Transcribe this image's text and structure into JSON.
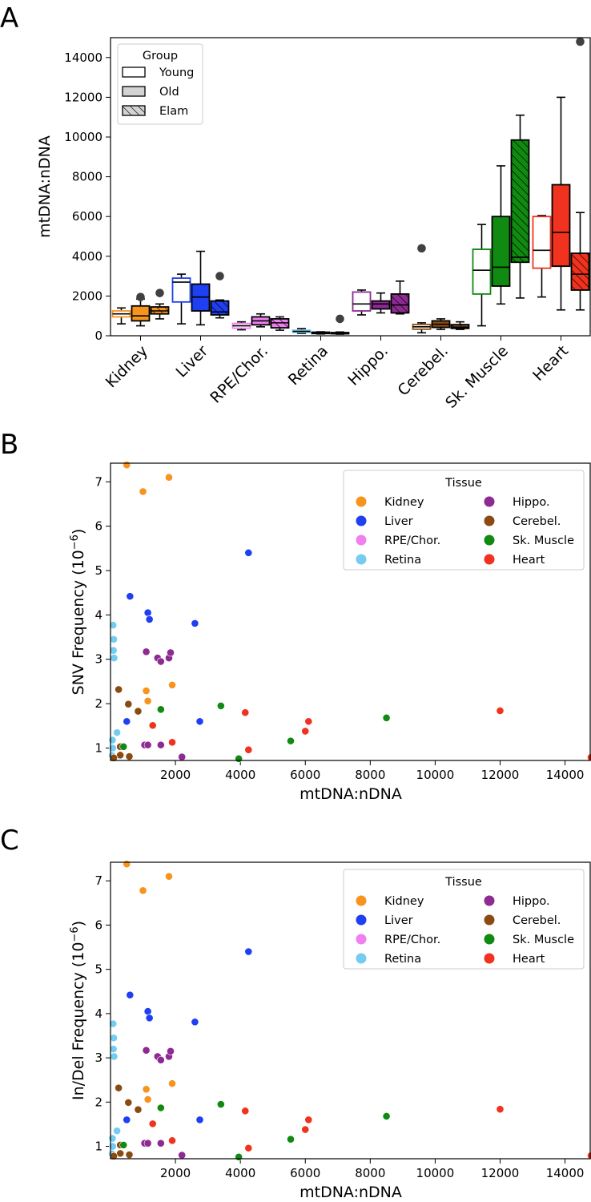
{
  "panels": {
    "a": {
      "letter": "A"
    },
    "b": {
      "letter": "B"
    },
    "c": {
      "letter": "C"
    }
  },
  "chart_data": [
    {
      "type": "box",
      "panel": "A",
      "ylabel": "mtDNA:nDNA",
      "ylim": [
        0,
        15000
      ],
      "yticks": [
        0,
        2000,
        4000,
        6000,
        8000,
        10000,
        12000,
        14000
      ],
      "categories": [
        "Kidney",
        "Liver",
        "RPE/Chor.",
        "Retina",
        "Hippo.",
        "Cerebel.",
        "Sk. Muscle",
        "Heart"
      ],
      "colors": [
        "#f7941d",
        "#1f3ff2",
        "#f07ff0",
        "#74cdf0",
        "#8e2a93",
        "#8a4b12",
        "#118a11",
        "#f0321e"
      ],
      "legend": {
        "title": "Group",
        "entries": [
          {
            "label": "Young",
            "style": "young"
          },
          {
            "label": "Old",
            "style": "old"
          },
          {
            "label": "Elam",
            "style": "elam"
          }
        ],
        "position": "top-left"
      },
      "series": [
        {
          "name": "Young",
          "boxes": [
            {
              "whislo": 600,
              "q1": 950,
              "med": 1100,
              "q3": 1250,
              "whishi": 1400,
              "fliers": []
            },
            {
              "whislo": 600,
              "q1": 1700,
              "med": 2700,
              "q3": 2900,
              "whishi": 3100,
              "fliers": []
            },
            {
              "whislo": 300,
              "q1": 380,
              "med": 500,
              "q3": 620,
              "whishi": 700,
              "fliers": []
            },
            {
              "whislo": 120,
              "q1": 170,
              "med": 220,
              "q3": 280,
              "whishi": 360,
              "fliers": []
            },
            {
              "whislo": 1050,
              "q1": 1250,
              "med": 1600,
              "q3": 2200,
              "whishi": 2300,
              "fliers": []
            },
            {
              "whislo": 150,
              "q1": 330,
              "med": 450,
              "q3": 570,
              "whishi": 650,
              "fliers": [
                4400
              ]
            },
            {
              "whislo": 500,
              "q1": 2100,
              "med": 3300,
              "q3": 4350,
              "whishi": 5600,
              "fliers": []
            },
            {
              "whislo": 1950,
              "q1": 3400,
              "med": 4300,
              "q3": 6000,
              "whishi": 6050,
              "fliers": []
            }
          ]
        },
        {
          "name": "Old",
          "boxes": [
            {
              "whislo": 500,
              "q1": 750,
              "med": 1000,
              "q3": 1500,
              "whishi": 1850,
              "fliers": [
                1950
              ]
            },
            {
              "whislo": 550,
              "q1": 1250,
              "med": 1950,
              "q3": 2600,
              "whishi": 4250,
              "fliers": []
            },
            {
              "whislo": 450,
              "q1": 550,
              "med": 750,
              "q3": 950,
              "whishi": 1100,
              "fliers": []
            },
            {
              "whislo": 90,
              "q1": 110,
              "med": 150,
              "q3": 180,
              "whishi": 200,
              "fliers": []
            },
            {
              "whislo": 1150,
              "q1": 1350,
              "med": 1600,
              "q3": 1750,
              "whishi": 2150,
              "fliers": []
            },
            {
              "whislo": 320,
              "q1": 420,
              "med": 580,
              "q3": 750,
              "whishi": 850,
              "fliers": []
            },
            {
              "whislo": 1600,
              "q1": 2500,
              "med": 3450,
              "q3": 6000,
              "whishi": 8550,
              "fliers": []
            },
            {
              "whislo": 1300,
              "q1": 3500,
              "med": 5200,
              "q3": 7600,
              "whishi": 12000,
              "fliers": []
            }
          ]
        },
        {
          "name": "Elam",
          "boxes": [
            {
              "whislo": 850,
              "q1": 1100,
              "med": 1250,
              "q3": 1450,
              "whishi": 1600,
              "fliers": [
                2150
              ]
            },
            {
              "whislo": 900,
              "q1": 1050,
              "med": 1200,
              "q3": 1750,
              "whishi": 1800,
              "fliers": [
                3000
              ]
            },
            {
              "whislo": 280,
              "q1": 400,
              "med": 650,
              "q3": 850,
              "whishi": 950,
              "fliers": []
            },
            {
              "whislo": 80,
              "q1": 100,
              "med": 130,
              "q3": 160,
              "whishi": 190,
              "fliers": [
                850
              ]
            },
            {
              "whislo": 1100,
              "q1": 1150,
              "med": 1550,
              "q3": 2100,
              "whishi": 2750,
              "fliers": []
            },
            {
              "whislo": 320,
              "q1": 370,
              "med": 430,
              "q3": 560,
              "whishi": 700,
              "fliers": []
            },
            {
              "whislo": 1900,
              "q1": 3700,
              "med": 3950,
              "q3": 9850,
              "whishi": 11100,
              "fliers": []
            },
            {
              "whislo": 1300,
              "q1": 2300,
              "med": 3100,
              "q3": 4150,
              "whishi": 6200,
              "fliers": [
                14800
              ]
            }
          ]
        }
      ]
    },
    {
      "type": "scatter",
      "panel": "B",
      "xlabel": "mtDNA:nDNA",
      "ylabel": "SNV Frequency (10",
      "ylabel_exp": "−6",
      "ylabel_close": ")",
      "xlim": [
        0,
        14800
      ],
      "ylim": [
        0.72,
        7.42
      ],
      "xticks": [
        2000,
        4000,
        6000,
        8000,
        10000,
        12000,
        14000
      ],
      "yticks": [
        1,
        2,
        3,
        4,
        5,
        6,
        7
      ],
      "legend": {
        "title": "Tissue",
        "position": "upper-right",
        "entries": [
          {
            "label": "Kidney",
            "color": "#f7941d"
          },
          {
            "label": "Hippo.",
            "color": "#8e2a93"
          },
          {
            "label": "Liver",
            "color": "#1f3ff2"
          },
          {
            "label": "Cerebel.",
            "color": "#8a4b12"
          },
          {
            "label": "RPE/Chor.",
            "color": "#f07ff0"
          },
          {
            "label": "Sk. Muscle",
            "color": "#118a11"
          },
          {
            "label": "Retina",
            "color": "#74cdf0"
          },
          {
            "label": "Heart",
            "color": "#f0321e"
          }
        ]
      },
      "series": [
        {
          "name": "Kidney",
          "color": "#f7941d",
          "points": [
            [
              500,
              7.38
            ],
            [
              1000,
              6.78
            ],
            [
              1800,
              7.1
            ],
            [
              1100,
              2.29
            ],
            [
              1900,
              2.42
            ],
            [
              1150,
              2.06
            ]
          ]
        },
        {
          "name": "Liver",
          "color": "#1f3ff2",
          "points": [
            [
              4250,
              5.4
            ],
            [
              600,
              4.42
            ],
            [
              1150,
              4.05
            ],
            [
              1200,
              3.9
            ],
            [
              2600,
              3.81
            ],
            [
              500,
              1.6
            ],
            [
              2750,
              1.6
            ]
          ]
        },
        {
          "name": "Retina",
          "color": "#74cdf0",
          "points": [
            [
              80,
              3.77
            ],
            [
              100,
              3.45
            ],
            [
              90,
              3.2
            ],
            [
              110,
              3.03
            ],
            [
              200,
              1.35
            ],
            [
              60,
              1.18
            ],
            [
              70,
              1.0
            ],
            [
              50,
              0.83
            ]
          ]
        },
        {
          "name": "Hippo.",
          "color": "#8e2a93",
          "points": [
            [
              1100,
              3.17
            ],
            [
              1450,
              3.03
            ],
            [
              1550,
              2.95
            ],
            [
              1800,
              3.03
            ],
            [
              1850,
              3.15
            ],
            [
              1050,
              1.07
            ],
            [
              1150,
              1.07
            ],
            [
              1550,
              1.07
            ],
            [
              2200,
              0.8
            ]
          ]
        },
        {
          "name": "Cerebel.",
          "color": "#8a4b12",
          "points": [
            [
              250,
              2.32
            ],
            [
              550,
              1.99
            ],
            [
              850,
              1.83
            ],
            [
              300,
              1.03
            ],
            [
              300,
              0.84
            ],
            [
              580,
              0.81
            ],
            [
              100,
              0.78
            ]
          ]
        },
        {
          "name": "Sk. Muscle",
          "color": "#118a11",
          "points": [
            [
              3400,
              1.95
            ],
            [
              1550,
              1.87
            ],
            [
              8500,
              1.68
            ],
            [
              5550,
              1.16
            ],
            [
              3950,
              0.76
            ],
            [
              400,
              1.03
            ]
          ]
        },
        {
          "name": "Heart",
          "color": "#f0321e",
          "points": [
            [
              4150,
              1.8
            ],
            [
              6100,
              1.6
            ],
            [
              6000,
              1.38
            ],
            [
              12000,
              1.84
            ],
            [
              1300,
              1.51
            ],
            [
              1900,
              1.13
            ],
            [
              4250,
              0.96
            ],
            [
              14800,
              0.79
            ]
          ]
        }
      ]
    },
    {
      "type": "scatter",
      "panel": "C",
      "xlabel": "mtDNA:nDNA",
      "ylabel": "In/Del Frequency (10",
      "ylabel_exp": "−6",
      "ylabel_close": ")",
      "xlim": [
        0,
        14800
      ],
      "ylim": [
        0.72,
        7.42
      ],
      "xticks": [
        2000,
        4000,
        6000,
        8000,
        10000,
        12000,
        14000
      ],
      "yticks": [
        1,
        2,
        3,
        4,
        5,
        6,
        7
      ],
      "legend": {
        "title": "Tissue",
        "position": "upper-right",
        "entries": [
          {
            "label": "Kidney",
            "color": "#f7941d"
          },
          {
            "label": "Hippo.",
            "color": "#8e2a93"
          },
          {
            "label": "Liver",
            "color": "#1f3ff2"
          },
          {
            "label": "Cerebel.",
            "color": "#8a4b12"
          },
          {
            "label": "RPE/Chor.",
            "color": "#f07ff0"
          },
          {
            "label": "Sk. Muscle",
            "color": "#118a11"
          },
          {
            "label": "Retina",
            "color": "#74cdf0"
          },
          {
            "label": "Heart",
            "color": "#f0321e"
          }
        ]
      },
      "series": [
        {
          "name": "Kidney",
          "color": "#f7941d",
          "points": [
            [
              500,
              7.38
            ],
            [
              1000,
              6.78
            ],
            [
              1800,
              7.1
            ],
            [
              1100,
              2.29
            ],
            [
              1900,
              2.42
            ],
            [
              1150,
              2.06
            ]
          ]
        },
        {
          "name": "Liver",
          "color": "#1f3ff2",
          "points": [
            [
              4250,
              5.4
            ],
            [
              600,
              4.42
            ],
            [
              1150,
              4.05
            ],
            [
              1200,
              3.9
            ],
            [
              2600,
              3.81
            ],
            [
              500,
              1.6
            ],
            [
              2750,
              1.6
            ]
          ]
        },
        {
          "name": "Retina",
          "color": "#74cdf0",
          "points": [
            [
              80,
              3.77
            ],
            [
              100,
              3.45
            ],
            [
              90,
              3.2
            ],
            [
              110,
              3.03
            ],
            [
              200,
              1.35
            ],
            [
              60,
              1.18
            ],
            [
              70,
              1.0
            ],
            [
              50,
              0.83
            ]
          ]
        },
        {
          "name": "Hippo.",
          "color": "#8e2a93",
          "points": [
            [
              1100,
              3.17
            ],
            [
              1450,
              3.03
            ],
            [
              1550,
              2.95
            ],
            [
              1800,
              3.03
            ],
            [
              1850,
              3.15
            ],
            [
              1050,
              1.07
            ],
            [
              1150,
              1.07
            ],
            [
              1550,
              1.07
            ],
            [
              2200,
              0.8
            ]
          ]
        },
        {
          "name": "Cerebel.",
          "color": "#8a4b12",
          "points": [
            [
              250,
              2.32
            ],
            [
              550,
              1.99
            ],
            [
              850,
              1.83
            ],
            [
              300,
              1.03
            ],
            [
              300,
              0.84
            ],
            [
              580,
              0.81
            ],
            [
              100,
              0.78
            ]
          ]
        },
        {
          "name": "Sk. Muscle",
          "color": "#118a11",
          "points": [
            [
              3400,
              1.95
            ],
            [
              1550,
              1.87
            ],
            [
              8500,
              1.68
            ],
            [
              5550,
              1.16
            ],
            [
              3950,
              0.76
            ],
            [
              400,
              1.03
            ]
          ]
        },
        {
          "name": "Heart",
          "color": "#f0321e",
          "points": [
            [
              4150,
              1.8
            ],
            [
              6100,
              1.6
            ],
            [
              6000,
              1.38
            ],
            [
              12000,
              1.84
            ],
            [
              1300,
              1.51
            ],
            [
              1900,
              1.13
            ],
            [
              4250,
              0.96
            ],
            [
              14800,
              0.79
            ]
          ]
        }
      ]
    }
  ]
}
